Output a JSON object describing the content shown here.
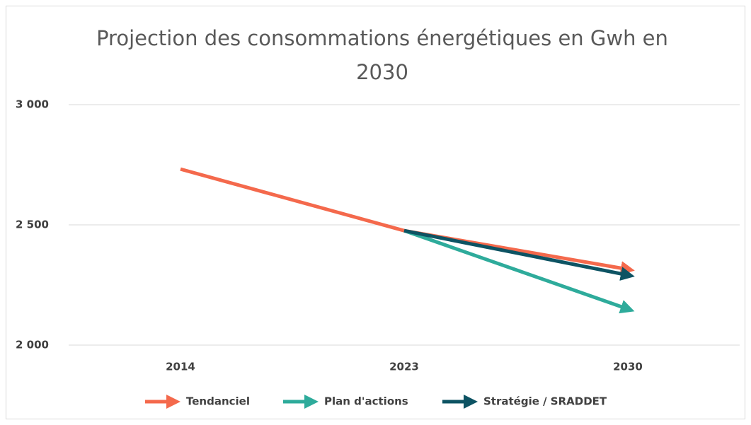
{
  "chart_data": {
    "type": "line",
    "title": "Projection des consommations énergétiques en Gwh en 2030",
    "categories": [
      "2014",
      "2023",
      "2030"
    ],
    "series": [
      {
        "name": "Tendanciel",
        "color": "#f4694c",
        "values": [
          2732,
          2476,
          2315
        ]
      },
      {
        "name": "Plan d'actions",
        "color": "#2eab9b",
        "values": [
          null,
          2476,
          2150
        ]
      },
      {
        "name": "Stratégie / SRADDET",
        "color": "#0d5363",
        "values": [
          null,
          2476,
          2291
        ]
      }
    ],
    "ylim": [
      2000,
      3000
    ],
    "yticks": [
      {
        "value": 2000,
        "label": "2 000"
      },
      {
        "value": 2500,
        "label": "2 500"
      },
      {
        "value": 3000,
        "label": "3 000"
      }
    ],
    "grid": true,
    "legend": "bottom"
  }
}
